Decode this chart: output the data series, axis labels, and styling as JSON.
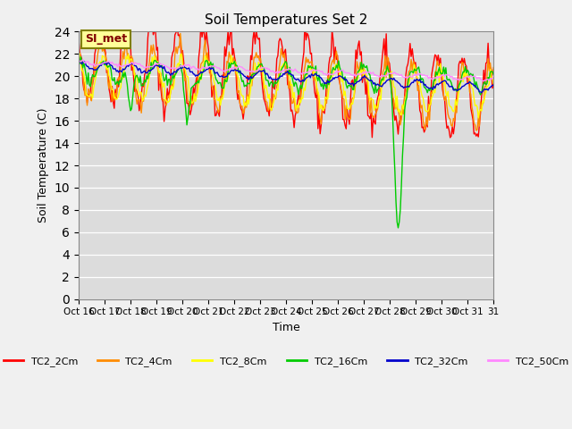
{
  "title": "Soil Temperatures Set 2",
  "xlabel": "Time",
  "ylabel": "Soil Temperature (C)",
  "ylim": [
    0,
    24
  ],
  "yticks": [
    0,
    2,
    4,
    6,
    8,
    10,
    12,
    14,
    16,
    18,
    20,
    22,
    24
  ],
  "xtick_labels": [
    "Oct 16",
    "Oct 17",
    "Oct 18",
    "Oct 19",
    "Oct 20",
    "Oct 21",
    "Oct 22",
    "Oct 23",
    "Oct 24",
    "Oct 25",
    "Oct 26",
    "Oct 27",
    "Oct 28",
    "Oct 29",
    "Oct 30",
    "Oct 31",
    "31"
  ],
  "series_colors": {
    "TC2_2Cm": "#FF0000",
    "TC2_4Cm": "#FF8C00",
    "TC2_8Cm": "#FFFF00",
    "TC2_16Cm": "#00CC00",
    "TC2_32Cm": "#0000CC",
    "TC2_50Cm": "#FF88FF"
  },
  "bg_color": "#DCDCDC",
  "annotation_text": "SI_met",
  "annotation_bg": "#FFFF99",
  "annotation_border": "#808000",
  "fig_bg": "#F0F0F0"
}
